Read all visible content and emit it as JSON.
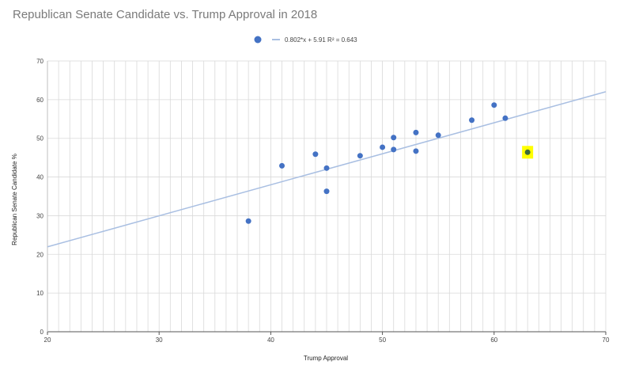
{
  "chart_data": {
    "type": "scatter",
    "title": "Republican Senate Candidate vs. Trump Approval in 2018",
    "xlabel": "Trump Approval",
    "ylabel": "Republican Senate Candidate %",
    "xlim": [
      20,
      70
    ],
    "ylim": [
      0,
      70
    ],
    "x_ticks": [
      20,
      30,
      40,
      50,
      60,
      70
    ],
    "y_ticks": [
      0,
      10,
      20,
      30,
      40,
      50,
      60,
      70
    ],
    "x_minor_step": 1,
    "y_minor_step": 10,
    "grid": true,
    "legend_position": "top-center",
    "legend_label": "0.802*x + 5.91 R² = 0.643",
    "trendline": {
      "slope": 0.802,
      "intercept": 5.91,
      "r2": 0.643
    },
    "points": [
      {
        "x": 38,
        "y": 28.6
      },
      {
        "x": 41,
        "y": 42.9
      },
      {
        "x": 44,
        "y": 45.9
      },
      {
        "x": 45,
        "y": 42.3
      },
      {
        "x": 45,
        "y": 36.3
      },
      {
        "x": 48,
        "y": 45.5
      },
      {
        "x": 50,
        "y": 47.7
      },
      {
        "x": 51,
        "y": 50.2
      },
      {
        "x": 51,
        "y": 47.1
      },
      {
        "x": 53,
        "y": 51.5
      },
      {
        "x": 53,
        "y": 46.7
      },
      {
        "x": 55,
        "y": 50.8
      },
      {
        "x": 58,
        "y": 54.7
      },
      {
        "x": 60,
        "y": 58.6
      },
      {
        "x": 61,
        "y": 55.2
      },
      {
        "x": 63,
        "y": 46.4,
        "highlighted": true
      }
    ],
    "colors": {
      "points": "#4472c4",
      "trendline": "#a9bfe2",
      "highlight": "#ffff00",
      "highlighted_point": "#3a6a3a",
      "grid": "#d9d9d9",
      "axis": "#bfbfbf"
    }
  }
}
